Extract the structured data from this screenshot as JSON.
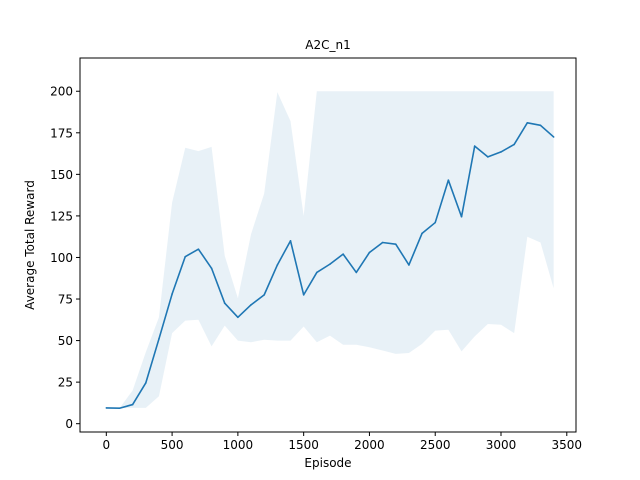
{
  "chart_data": {
    "type": "line",
    "title": "A2C_n1",
    "xlabel": "Episode",
    "ylabel": "Average Total Reward",
    "xlim": [
      -200,
      3570
    ],
    "ylim": [
      -5,
      220
    ],
    "xticks": [
      0,
      500,
      1000,
      1500,
      2000,
      2500,
      3000,
      3500
    ],
    "yticks": [
      0,
      25,
      50,
      75,
      100,
      125,
      150,
      175,
      200
    ],
    "grid": false,
    "legend": "none",
    "colors": {
      "line": "#1f77b4",
      "band": "#1f77b4"
    },
    "x": [
      0,
      100,
      200,
      300,
      400,
      500,
      600,
      700,
      800,
      900,
      1000,
      1100,
      1200,
      1300,
      1400,
      1500,
      1600,
      1700,
      1800,
      1900,
      2000,
      2100,
      2200,
      2300,
      2400,
      2500,
      2600,
      2700,
      2800,
      2900,
      3000,
      3100,
      3200,
      3300,
      3400
    ],
    "series": [
      {
        "values": [
          9.5,
          9.3,
          11.5,
          24.5,
          51,
          78,
          100.5,
          105,
          93.5,
          72.5,
          64,
          71.5,
          77.5,
          95.5,
          110,
          77.5,
          91,
          96,
          102,
          91,
          103,
          109,
          108,
          95.5,
          114.5,
          121,
          146.5,
          124.5,
          167,
          160.5,
          163.5,
          168,
          181,
          179.5,
          172.5
        ],
        "lower": [
          9.5,
          9.3,
          9.5,
          9.5,
          16.5,
          54.5,
          62,
          62.5,
          46.5,
          59,
          50,
          49,
          50.5,
          50,
          50,
          58.5,
          49,
          53,
          47.5,
          47.5,
          46,
          44,
          42,
          42.5,
          48,
          56,
          56.5,
          43.5,
          52.5,
          60,
          59.5,
          54.5,
          112.5,
          109,
          81.5
        ],
        "upper": [
          9.5,
          9.3,
          20,
          43,
          64,
          133,
          166,
          164,
          166.5,
          101,
          75.5,
          114,
          138.5,
          199.5,
          182,
          125,
          200,
          200,
          200,
          200,
          200,
          200,
          200,
          200,
          200,
          200,
          200,
          200,
          200,
          200,
          200,
          200,
          200,
          200,
          200
        ]
      }
    ]
  }
}
